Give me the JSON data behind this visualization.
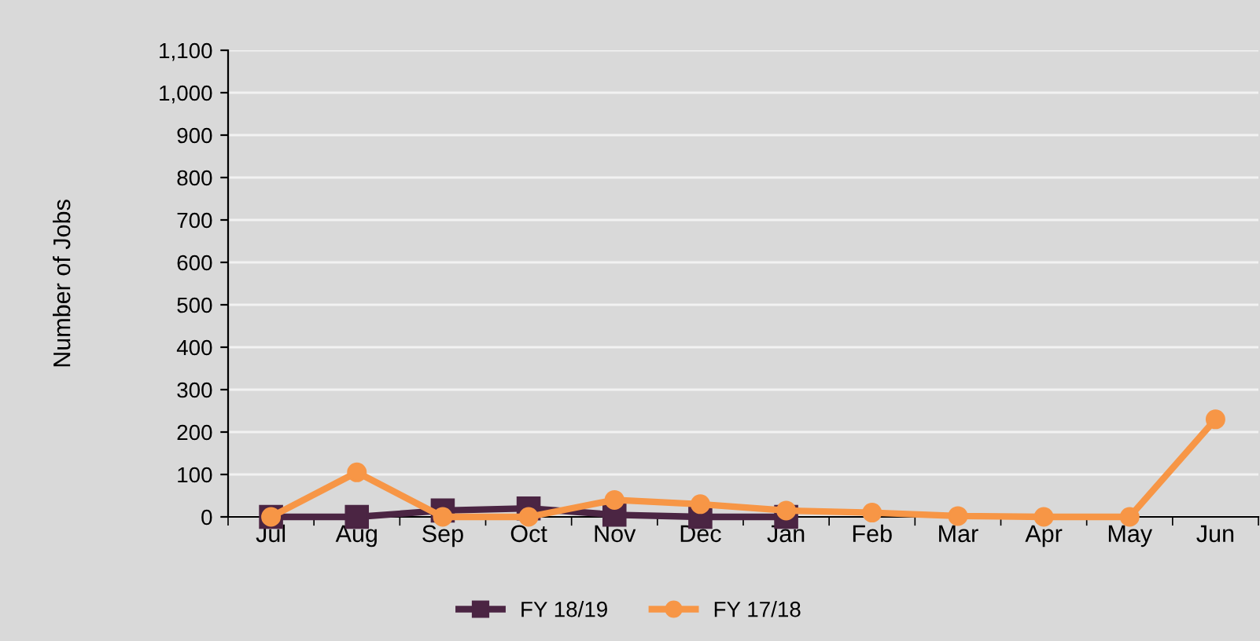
{
  "chart_data": {
    "type": "line",
    "ylabel": "Number of Jobs",
    "categories": [
      "Jul",
      "Aug",
      "Sep",
      "Oct",
      "Nov",
      "Dec",
      "Jan",
      "Feb",
      "Mar",
      "Apr",
      "May",
      "Jun"
    ],
    "series": [
      {
        "name": "FY 18/19",
        "color": "#4b2543",
        "marker": "square",
        "values": [
          0,
          0,
          15,
          20,
          5,
          0,
          0,
          null,
          null,
          null,
          null,
          null
        ]
      },
      {
        "name": "FY 17/18",
        "color": "#f79646",
        "marker": "circle",
        "values": [
          0,
          105,
          0,
          0,
          40,
          30,
          15,
          10,
          2,
          0,
          0,
          230
        ]
      }
    ],
    "ylim": [
      0,
      1100
    ],
    "yticks": [
      0,
      {
        "value": 100,
        "label": "100"
      },
      200,
      300,
      400,
      500,
      600,
      700,
      800,
      900,
      {
        "value": 1000,
        "label": "1,000"
      },
      {
        "value": 1100,
        "label": "1,100"
      }
    ],
    "grid": "y",
    "legend": "bottom"
  }
}
